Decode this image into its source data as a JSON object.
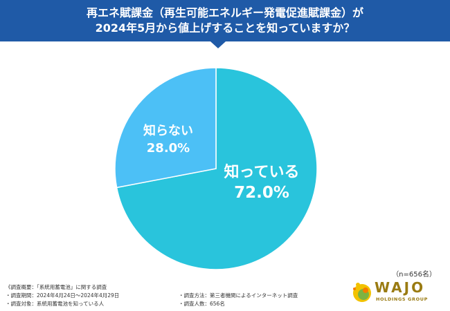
{
  "header": {
    "line1": "再エネ賦課金（再生可能エネルギー発電促進賦課金）が",
    "line2": "2024年5月から値上げすることを知っていますか？",
    "bg_color": "#1f5aa7"
  },
  "chart_data": {
    "type": "pie",
    "categories": [
      "知っている",
      "知らない"
    ],
    "values": [
      72.0,
      28.0
    ],
    "value_labels": [
      "72.0%",
      "28.0%"
    ],
    "colors": [
      "#29c4dc",
      "#4cc0f6"
    ],
    "start": "12 o'clock",
    "direction": "clockwise"
  },
  "sample_size": "（n=656名）",
  "notes": {
    "overview": "《調査概要：「系統用蓄電池」に関する調査",
    "period": "・調査期間：2024年4月24日～2024年4月29日",
    "target": "・調査対象：系統用蓄電池を知っている人",
    "method": "・調査方法：第三者機関によるインターネット調査",
    "count": "・調査人数：656名"
  },
  "logo": {
    "name": "WAJO",
    "sub": "HOLDINGS GROUP",
    "color": "#9a7b12"
  }
}
